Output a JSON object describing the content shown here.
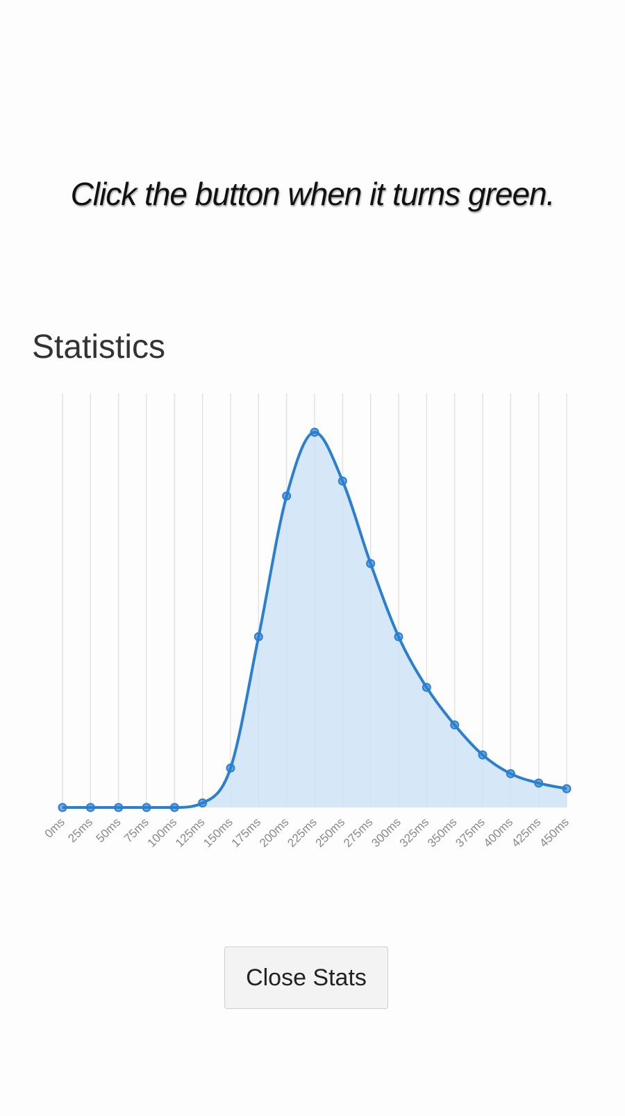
{
  "instruction": "Click the button when it turns green.",
  "stats": {
    "heading": "Statistics",
    "close_label": "Close Stats"
  },
  "colors": {
    "line": "#2a7fd0",
    "fill": "#cfe3f6",
    "grid": "#e3e3e3"
  },
  "chart_data": {
    "type": "area",
    "title": "",
    "xlabel": "",
    "ylabel": "",
    "categories": [
      "0ms",
      "25ms",
      "50ms",
      "75ms",
      "100ms",
      "125ms",
      "150ms",
      "175ms",
      "200ms",
      "225ms",
      "250ms",
      "275ms",
      "300ms",
      "325ms",
      "350ms",
      "375ms",
      "400ms",
      "425ms",
      "450ms"
    ],
    "values": [
      0,
      0,
      0,
      0,
      0,
      1.2,
      10.5,
      45.5,
      83,
      100,
      87,
      65,
      45.5,
      32,
      22,
      14,
      9,
      6.5,
      5
    ],
    "ylim": [
      0,
      100
    ],
    "grid": "vertical",
    "legend": "none",
    "y_axis_labels": false
  }
}
